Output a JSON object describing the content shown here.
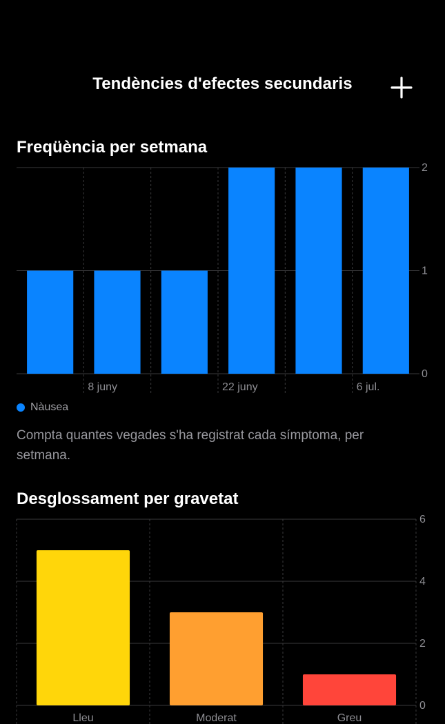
{
  "header": {
    "title": "Tendències d'efectes secundaris",
    "add_icon": "plus-icon"
  },
  "frequency": {
    "title": "Freqüència per setmana",
    "legend_label": "Nàusea",
    "caption": "Compta quantes vegades s'ha registrat cada símptoma, per setmana."
  },
  "severity": {
    "title": "Desglossament per gravetat"
  },
  "colors": {
    "background": "#000000",
    "nausea": "#0A84FF",
    "mild": "#FFD60A",
    "moderate": "#FF9F30",
    "severe": "#FF453A"
  },
  "chart_data": [
    {
      "type": "bar",
      "title": "Freqüència per setmana",
      "x_labels": [
        "8 juny",
        "22 juny",
        "6 jul."
      ],
      "series": [
        {
          "name": "Nàusea",
          "values": [
            1,
            1,
            1,
            2,
            2,
            2
          ],
          "color": "#0A84FF"
        }
      ],
      "ylim": [
        0,
        2
      ],
      "yticks": [
        "0",
        "1",
        "2"
      ],
      "y_axis_position": "right",
      "grid": true,
      "legend": "bottom-left"
    },
    {
      "type": "bar",
      "title": "Desglossament per gravetat",
      "categories": [
        "Lleu",
        "Moderat",
        "Greu"
      ],
      "values": [
        5,
        3,
        1
      ],
      "colors": [
        "#FFD60A",
        "#FF9F30",
        "#FF453A"
      ],
      "ylim": [
        0,
        6
      ],
      "yticks": [
        "0",
        "2",
        "4",
        "6"
      ],
      "y_axis_position": "right",
      "grid": true
    }
  ]
}
